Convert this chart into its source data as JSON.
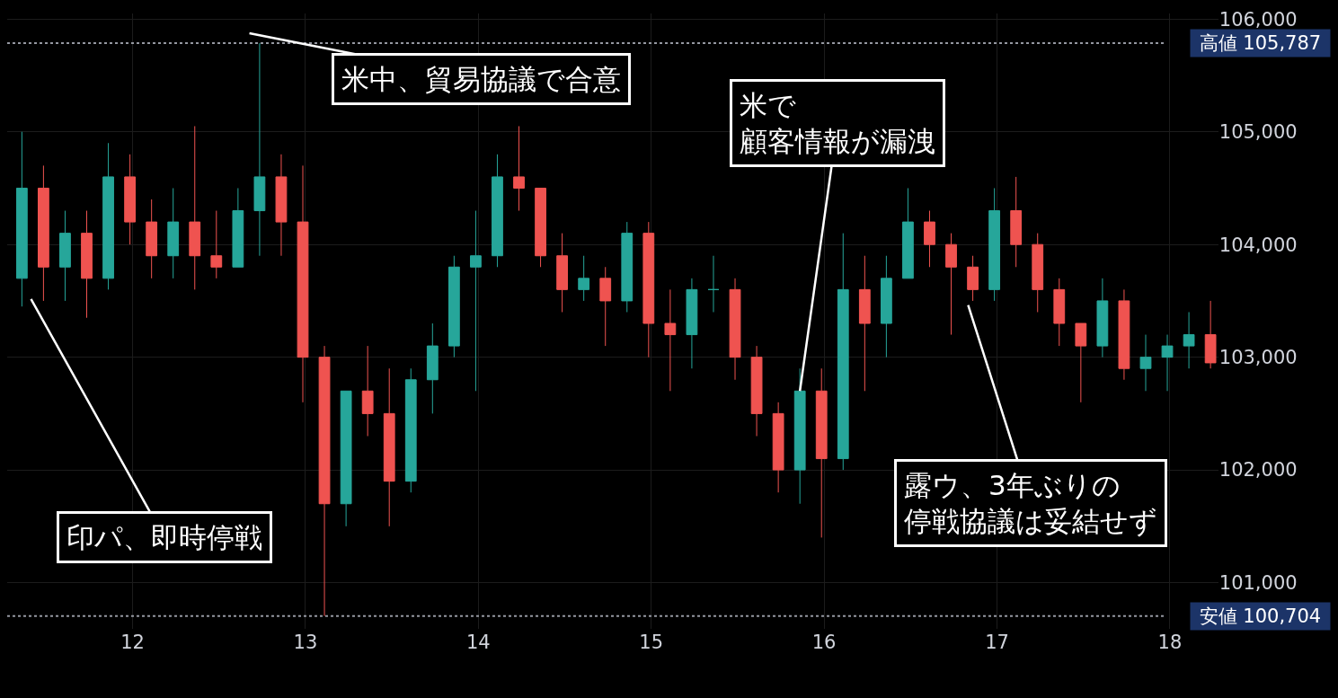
{
  "chart_data": {
    "type": "candlestick",
    "x": [
      11.36,
      11.485,
      11.61,
      11.735,
      11.86,
      11.985,
      12.11,
      12.235,
      12.36,
      12.485,
      12.61,
      12.735,
      12.86,
      12.985,
      13.11,
      13.235,
      13.36,
      13.485,
      13.61,
      13.735,
      13.86,
      13.985,
      14.11,
      14.235,
      14.36,
      14.485,
      14.61,
      14.735,
      14.86,
      14.985,
      15.11,
      15.235,
      15.36,
      15.485,
      15.61,
      15.735,
      15.86,
      15.985,
      16.11,
      16.235,
      16.36,
      16.485,
      16.61,
      16.735,
      16.86,
      16.985,
      17.11,
      17.235,
      17.36,
      17.485,
      17.61,
      17.735,
      17.86,
      17.985,
      18.11,
      18.235
    ],
    "ohlc": [
      [
        103700,
        105000,
        103450,
        104500
      ],
      [
        104500,
        104700,
        103500,
        103800
      ],
      [
        103800,
        104300,
        103500,
        104100
      ],
      [
        104100,
        104300,
        103350,
        103700
      ],
      [
        103700,
        104900,
        103600,
        104600
      ],
      [
        104600,
        104800,
        104000,
        104200
      ],
      [
        104200,
        104400,
        103700,
        103900
      ],
      [
        103900,
        104500,
        103700,
        104200
      ],
      [
        104200,
        105050,
        103600,
        103900
      ],
      [
        103900,
        104300,
        103700,
        103800
      ],
      [
        103800,
        104500,
        103800,
        104300
      ],
      [
        104300,
        105787,
        103900,
        104600
      ],
      [
        104600,
        104800,
        103900,
        104200
      ],
      [
        104200,
        104700,
        102600,
        103000
      ],
      [
        103000,
        103100,
        100704,
        101700
      ],
      [
        101700,
        102700,
        101500,
        102700
      ],
      [
        102700,
        103100,
        102300,
        102500
      ],
      [
        102500,
        102900,
        101500,
        101900
      ],
      [
        101900,
        102900,
        101800,
        102800
      ],
      [
        102800,
        103300,
        102500,
        103100
      ],
      [
        103100,
        103900,
        103000,
        103800
      ],
      [
        103800,
        104300,
        102700,
        103900
      ],
      [
        103900,
        104800,
        103800,
        104600
      ],
      [
        104600,
        105050,
        104300,
        104500
      ],
      [
        104500,
        104500,
        103800,
        103900
      ],
      [
        103900,
        104100,
        103400,
        103600
      ],
      [
        103600,
        103900,
        103500,
        103700
      ],
      [
        103700,
        103800,
        103100,
        103500
      ],
      [
        103500,
        104200,
        103400,
        104100
      ],
      [
        104100,
        104200,
        103000,
        103300
      ],
      [
        103300,
        103600,
        102700,
        103200
      ],
      [
        103200,
        103700,
        102900,
        103600
      ],
      [
        103600,
        103900,
        103400,
        103600
      ],
      [
        103600,
        103700,
        102800,
        103000
      ],
      [
        103000,
        103100,
        102300,
        102500
      ],
      [
        102500,
        102600,
        101800,
        102000
      ],
      [
        102000,
        102900,
        101700,
        102700
      ],
      [
        102700,
        102900,
        101400,
        102100
      ],
      [
        102100,
        104100,
        102000,
        103600
      ],
      [
        103600,
        103900,
        102700,
        103300
      ],
      [
        103300,
        103900,
        103000,
        103700
      ],
      [
        103700,
        104500,
        103700,
        104200
      ],
      [
        104200,
        104300,
        103800,
        104000
      ],
      [
        104000,
        104100,
        103200,
        103800
      ],
      [
        103800,
        103900,
        103500,
        103600
      ],
      [
        103600,
        104500,
        103500,
        104300
      ],
      [
        104300,
        104600,
        103800,
        104000
      ],
      [
        104000,
        104100,
        103400,
        103600
      ],
      [
        103600,
        103700,
        103100,
        103300
      ],
      [
        103300,
        103300,
        102600,
        103100
      ],
      [
        103100,
        103700,
        103000,
        103500
      ],
      [
        103500,
        103600,
        102800,
        102900
      ],
      [
        102900,
        103200,
        102700,
        103000
      ],
      [
        103000,
        103200,
        102700,
        103100
      ],
      [
        103100,
        103400,
        102900,
        103200
      ],
      [
        103200,
        103500,
        102900,
        102950
      ]
    ],
    "colors": [
      "#26a69a",
      "#ef5350",
      "#26a69a",
      "#ef5350",
      "#26a69a",
      "#ef5350",
      "#ef5350",
      "#26a69a",
      "#ef5350",
      "#ef5350",
      "#26a69a",
      "#26a69a",
      "#ef5350",
      "#ef5350",
      "#ef5350",
      "#26a69a",
      "#ef5350",
      "#ef5350",
      "#26a69a",
      "#26a69a",
      "#26a69a",
      "#26a69a",
      "#26a69a",
      "#ef5350",
      "#ef5350",
      "#ef5350",
      "#26a69a",
      "#ef5350",
      "#26a69a",
      "#ef5350",
      "#ef5350",
      "#26a69a",
      "#26a69a",
      "#ef5350",
      "#ef5350",
      "#ef5350",
      "#26a69a",
      "#ef5350",
      "#26a69a",
      "#ef5350",
      "#26a69a",
      "#26a69a",
      "#ef5350",
      "#ef5350",
      "#ef5350",
      "#26a69a",
      "#ef5350",
      "#ef5350",
      "#ef5350",
      "#ef5350",
      "#26a69a",
      "#ef5350",
      "#26a69a",
      "#26a69a",
      "#26a69a",
      "#ef5350"
    ],
    "xlim": [
      11.275,
      18.28
    ],
    "xticks": [
      12,
      13,
      14,
      15,
      16,
      17,
      18
    ],
    "ylim": [
      100590,
      106050
    ],
    "yticks": [
      {
        "value": 101000,
        "label": "101,000"
      },
      {
        "value": 102000,
        "label": "102,000"
      },
      {
        "value": 103000,
        "label": "103,000"
      },
      {
        "value": 104000,
        "label": "104,000"
      },
      {
        "value": 105000,
        "label": "105,000"
      },
      {
        "value": 106000,
        "label": "106,000"
      }
    ],
    "grid": true,
    "ref_lines": [
      {
        "axis": "y",
        "value": 105787,
        "label": "高値 105,787",
        "color": "#9598a1",
        "line_style": "dotted"
      },
      {
        "axis": "y",
        "value": 100704,
        "label": "安値 100,704",
        "color": "#9598a1",
        "line_style": "dotted"
      }
    ],
    "annotations": [
      "印パ、即時停戦",
      "米中、貿易協議で合意",
      {
        "text": "米で顧客情報が漏洩",
        "x": 15.86,
        "y": 102700
      },
      "露ウ、3年ぶりの停戦協議は妥結せず"
    ]
  }
}
